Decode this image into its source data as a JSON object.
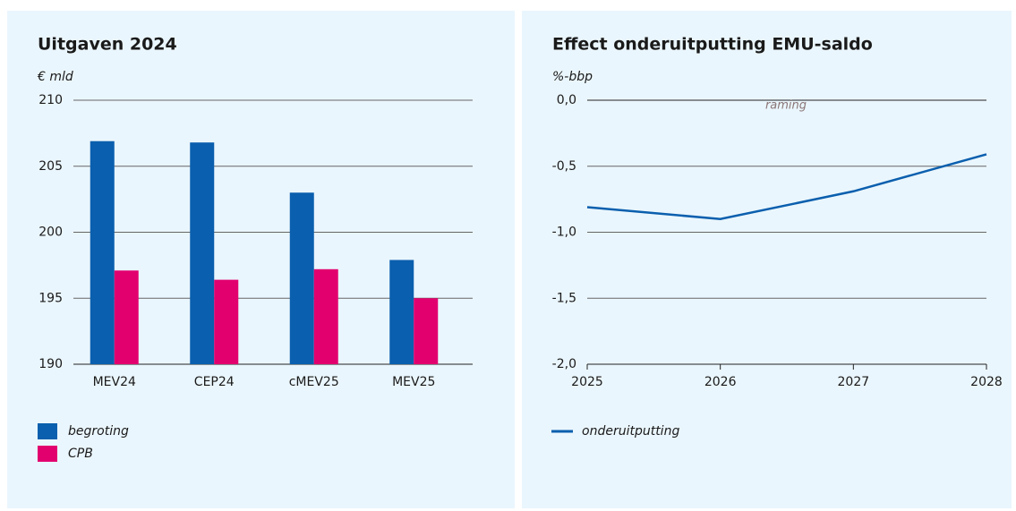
{
  "chart_data": [
    {
      "type": "bar",
      "title": "Uitgaven 2024",
      "y_label": "€ mld",
      "categories": [
        "MEV24",
        "CEP24",
        "cMEV25",
        "MEV25"
      ],
      "series": [
        {
          "name": "begroting",
          "color": "#0a5fae",
          "values": [
            206.9,
            206.8,
            203.0,
            197.9
          ]
        },
        {
          "name": "CPB",
          "color": "#e2006f",
          "values": [
            197.1,
            196.4,
            197.2,
            195.0
          ]
        }
      ],
      "ylim": [
        190,
        210
      ],
      "yticks": [
        190,
        195,
        200,
        205,
        210
      ],
      "grid": true,
      "legend": "bottom"
    },
    {
      "type": "line",
      "title": "Effect onderuitputting EMU-saldo",
      "y_label": "%-bbp",
      "annotation": "raming",
      "x": [
        2025,
        2026,
        2027,
        2028
      ],
      "series": [
        {
          "name": "onderuitputting",
          "color": "#0a5fae",
          "values": [
            -0.81,
            -0.9,
            -0.69,
            -0.41
          ]
        }
      ],
      "xlim": [
        2025,
        2028
      ],
      "xticks": [
        2025,
        2026,
        2027,
        2028
      ],
      "ylim": [
        -2,
        0
      ],
      "yticks": [
        {
          "value": -2,
          "label": "-2,0"
        },
        {
          "value": -1.5,
          "label": "-1,5"
        },
        {
          "value": -1,
          "label": "-1,0"
        },
        {
          "value": -0.5,
          "label": "-0,5"
        },
        {
          "value": 0,
          "label": "0,0"
        }
      ],
      "grid": true,
      "legend": "bottom"
    }
  ]
}
